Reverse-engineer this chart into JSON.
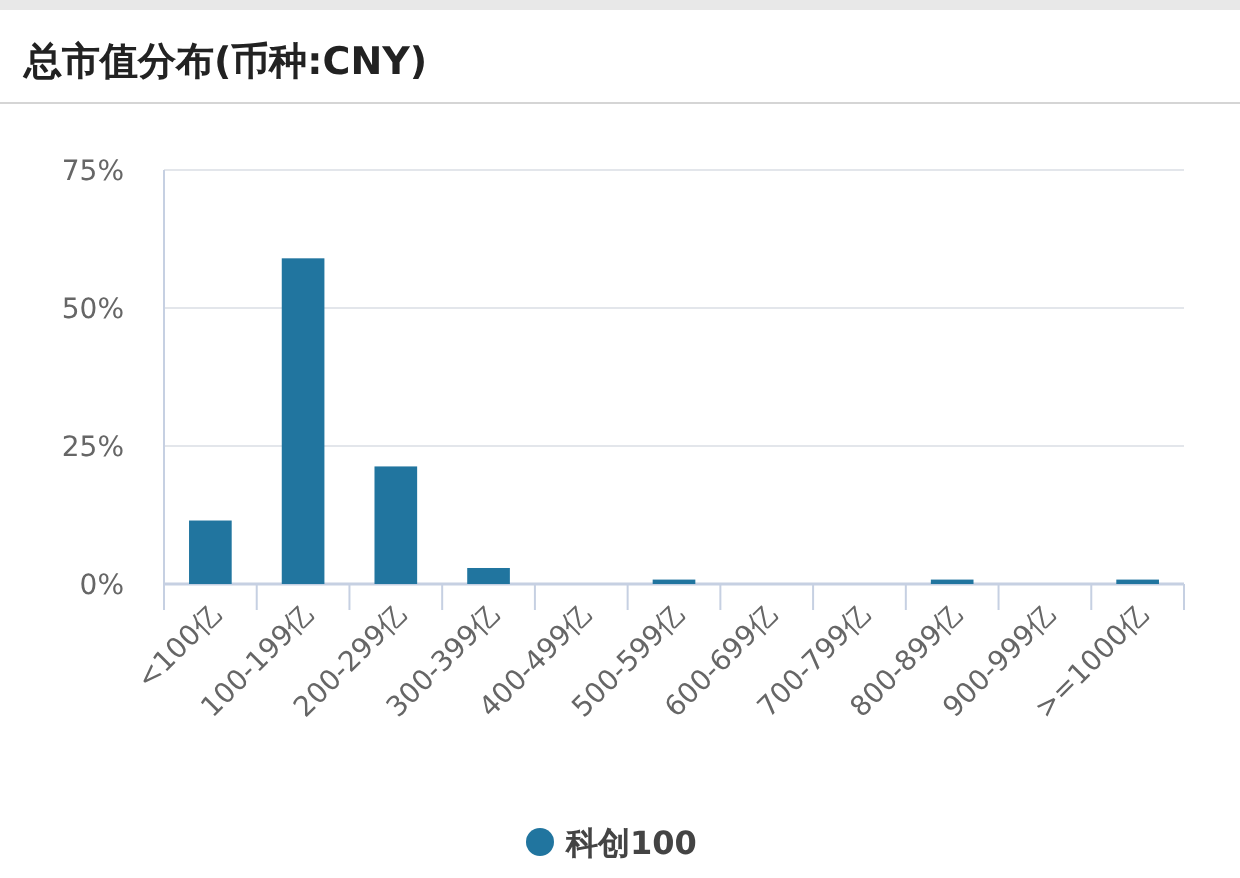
{
  "chart_data": {
    "type": "bar",
    "title": "总市值分布(币种:CNY)",
    "categories": [
      "<100亿",
      "100-199亿",
      "200-299亿",
      "300-399亿",
      "400-499亿",
      "500-599亿",
      "600-699亿",
      "700-799亿",
      "800-899亿",
      "900-999亿",
      ">=1000亿"
    ],
    "series": [
      {
        "name": "科创100",
        "color": "#21759f",
        "values": [
          11.5,
          59,
          21.3,
          2.9,
          0,
          0.8,
          0,
          0,
          0.8,
          0,
          0.8
        ]
      }
    ],
    "ylim": [
      0,
      75
    ],
    "yticks": [
      {
        "value": 0,
        "label": "0%"
      },
      {
        "value": 25,
        "label": "25%"
      },
      {
        "value": 50,
        "label": "50%"
      },
      {
        "value": 75,
        "label": "75%"
      }
    ],
    "grid": "y",
    "legend": "bottom"
  }
}
